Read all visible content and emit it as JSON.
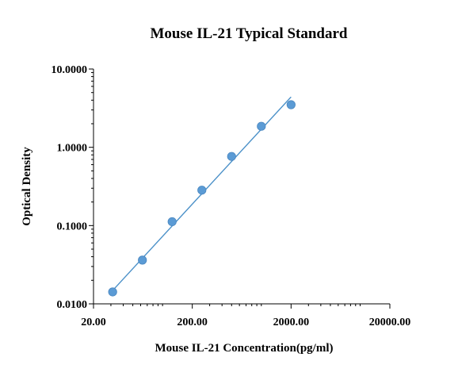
{
  "chart_data": {
    "type": "scatter",
    "title": "Mouse IL-21 Typical Standard",
    "xlabel": "Mouse IL-21 Concentration(pg/ml)",
    "ylabel": "Optical Density",
    "x_scale": "log",
    "y_scale": "log",
    "xlim": [
      20,
      20000
    ],
    "ylim": [
      0.01,
      10
    ],
    "x_ticks": [
      20,
      200,
      2000,
      20000
    ],
    "x_tick_labels": [
      "20.00",
      "200.00",
      "2000.00",
      "20000.00"
    ],
    "y_ticks": [
      0.01,
      0.1,
      1,
      10
    ],
    "y_tick_labels": [
      "0.0100",
      "0.1000",
      "1.0000",
      "10.0000"
    ],
    "grid": false,
    "series": [
      {
        "points": [
          {
            "x": 31.25,
            "y": 0.0142
          },
          {
            "x": 62.5,
            "y": 0.0362
          },
          {
            "x": 125,
            "y": 0.1121
          },
          {
            "x": 250,
            "y": 0.2832
          },
          {
            "x": 500,
            "y": 0.7641
          },
          {
            "x": 1000,
            "y": 1.8551
          },
          {
            "x": 2000,
            "y": 3.4973
          }
        ],
        "color": "#5b9bd5"
      }
    ],
    "fit_line": {
      "x": [
        31.25,
        2000
      ],
      "y": [
        0.0148,
        4.4
      ],
      "color": "#4a90c8"
    }
  }
}
